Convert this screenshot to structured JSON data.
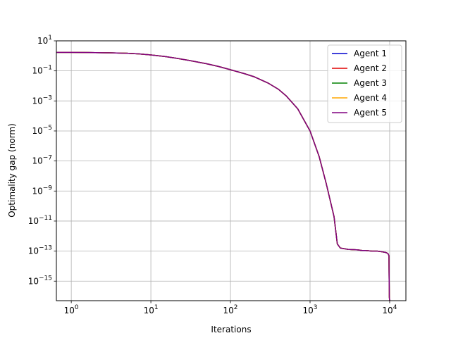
{
  "chart_data": {
    "type": "line",
    "title": "",
    "xlabel": "Iterations",
    "ylabel": "Optimality gap (norm)",
    "xscale": "log",
    "yscale": "log",
    "xlim": [
      0.65,
      16000
    ],
    "ylim": [
      5e-17,
      10
    ],
    "grid": true,
    "legend_position": "top-right",
    "x_ticks": [
      {
        "value": 1,
        "base": "10",
        "exp": "0"
      },
      {
        "value": 10,
        "base": "10",
        "exp": "1"
      },
      {
        "value": 100,
        "base": "10",
        "exp": "2"
      },
      {
        "value": 1000,
        "base": "10",
        "exp": "3"
      },
      {
        "value": 10000,
        "base": "10",
        "exp": "4"
      }
    ],
    "y_ticks": [
      {
        "value": 1e-15,
        "base": "10",
        "exp": "−15"
      },
      {
        "value": 1e-13,
        "base": "10",
        "exp": "−13"
      },
      {
        "value": 1e-11,
        "base": "10",
        "exp": "−11"
      },
      {
        "value": 1e-09,
        "base": "10",
        "exp": "−9"
      },
      {
        "value": 1e-07,
        "base": "10",
        "exp": "−7"
      },
      {
        "value": 1e-05,
        "base": "10",
        "exp": "−5"
      },
      {
        "value": 0.001,
        "base": "10",
        "exp": "−3"
      },
      {
        "value": 0.1,
        "base": "10",
        "exp": "−1"
      },
      {
        "value": 10,
        "base": "10",
        "exp": "1"
      }
    ],
    "x": [
      0.65,
      1,
      2,
      3,
      5,
      7,
      10,
      15,
      20,
      30,
      50,
      70,
      100,
      150,
      200,
      300,
      400,
      500,
      700,
      1000,
      1300,
      1600,
      2000,
      2200,
      2400,
      3000,
      4000,
      4500,
      5000,
      6000,
      7000,
      8000,
      9000,
      9500,
      9800,
      9900,
      10000
    ],
    "series": [
      {
        "name": "Agent 1",
        "color": "#0000cd",
        "values": [
          1.7,
          1.7,
          1.65,
          1.6,
          1.5,
          1.35,
          1.15,
          0.9,
          0.72,
          0.5,
          0.3,
          0.2,
          0.12,
          0.065,
          0.04,
          0.015,
          0.006,
          0.0022,
          0.0003,
          1e-05,
          2e-07,
          3e-09,
          2e-11,
          3e-13,
          1.6e-13,
          1.3e-13,
          1.2e-13,
          1.1e-13,
          1.1e-13,
          1e-13,
          1e-13,
          9e-14,
          8e-14,
          7e-14,
          5e-14,
          1e-16,
          5e-17
        ]
      },
      {
        "name": "Agent 2",
        "color": "#e00000",
        "values": [
          1.7,
          1.7,
          1.65,
          1.6,
          1.5,
          1.35,
          1.15,
          0.9,
          0.72,
          0.5,
          0.3,
          0.2,
          0.12,
          0.065,
          0.04,
          0.015,
          0.006,
          0.0022,
          0.0003,
          1e-05,
          2e-07,
          3e-09,
          2e-11,
          3e-13,
          1.6e-13,
          1.3e-13,
          1.2e-13,
          1.1e-13,
          1.1e-13,
          1e-13,
          1e-13,
          9e-14,
          8e-14,
          7e-14,
          5e-14,
          1e-16,
          5e-17
        ]
      },
      {
        "name": "Agent 3",
        "color": "#008000",
        "values": [
          1.7,
          1.7,
          1.65,
          1.6,
          1.5,
          1.35,
          1.15,
          0.9,
          0.72,
          0.5,
          0.3,
          0.2,
          0.12,
          0.065,
          0.04,
          0.015,
          0.006,
          0.0022,
          0.0003,
          1e-05,
          2e-07,
          3e-09,
          2e-11,
          3e-13,
          1.6e-13,
          1.3e-13,
          1.2e-13,
          1.1e-13,
          1.1e-13,
          1e-13,
          1e-13,
          9e-14,
          8e-14,
          7e-14,
          5e-14,
          1e-16,
          5e-17
        ]
      },
      {
        "name": "Agent 4",
        "color": "#ffa500",
        "values": [
          1.7,
          1.7,
          1.65,
          1.6,
          1.5,
          1.35,
          1.15,
          0.9,
          0.72,
          0.5,
          0.3,
          0.2,
          0.12,
          0.065,
          0.04,
          0.015,
          0.006,
          0.0022,
          0.0003,
          1e-05,
          2e-07,
          3e-09,
          2e-11,
          3e-13,
          1.6e-13,
          1.3e-13,
          1.2e-13,
          1.1e-13,
          1.1e-13,
          1e-13,
          1e-13,
          9e-14,
          8e-14,
          7e-14,
          5e-14,
          1e-16,
          5e-17
        ]
      },
      {
        "name": "Agent 5",
        "color": "#800080",
        "values": [
          1.7,
          1.7,
          1.65,
          1.6,
          1.5,
          1.35,
          1.15,
          0.9,
          0.72,
          0.5,
          0.3,
          0.2,
          0.12,
          0.065,
          0.04,
          0.015,
          0.006,
          0.0022,
          0.0003,
          1e-05,
          2e-07,
          3e-09,
          2e-11,
          3e-13,
          1.6e-13,
          1.3e-13,
          1.2e-13,
          1.1e-13,
          1.1e-13,
          1e-13,
          1e-13,
          9e-14,
          8e-14,
          7e-14,
          5e-14,
          1e-16,
          5e-17
        ]
      }
    ]
  }
}
